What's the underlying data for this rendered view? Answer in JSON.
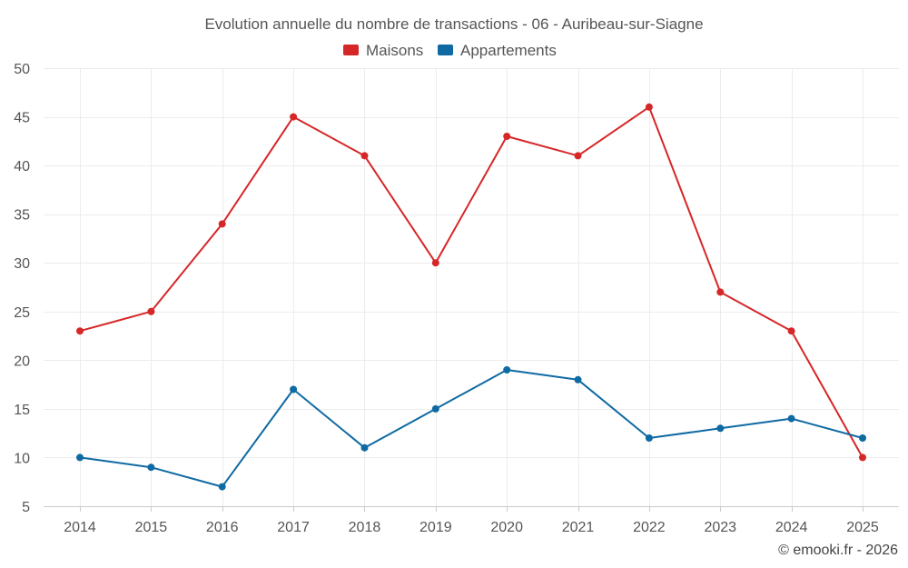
{
  "chart_data": {
    "type": "line",
    "title": "Evolution annuelle du nombre de transactions - 06 - Auribeau-sur-Siagne",
    "categories": [
      "2014",
      "2015",
      "2016",
      "2017",
      "2018",
      "2019",
      "2020",
      "2021",
      "2022",
      "2023",
      "2024",
      "2025"
    ],
    "series": [
      {
        "name": "Maisons",
        "color": "#d62728",
        "values": [
          23,
          25,
          34,
          45,
          41,
          30,
          43,
          41,
          46,
          27,
          23,
          10
        ]
      },
      {
        "name": "Appartements",
        "color": "#0f6aa3",
        "values": [
          10,
          9,
          7,
          17,
          11,
          15,
          19,
          18,
          12,
          13,
          14,
          12
        ]
      }
    ],
    "ylim": [
      5,
      50
    ],
    "yticks": [
      "5",
      "10",
      "15",
      "20",
      "25",
      "30",
      "35",
      "40",
      "45",
      "50"
    ],
    "grid": true,
    "legend_position": "top-center",
    "xlabel": "",
    "ylabel": ""
  },
  "credit": "© emooki.fr - 2026"
}
